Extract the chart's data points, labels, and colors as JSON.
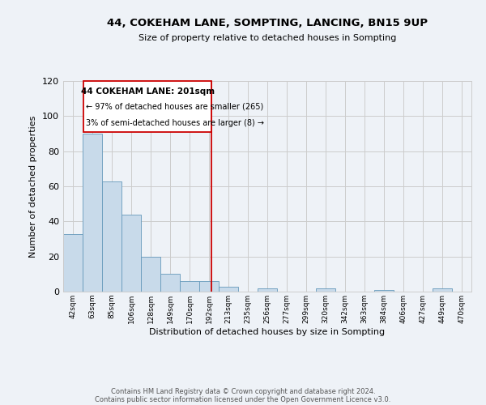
{
  "title": "44, COKEHAM LANE, SOMPTING, LANCING, BN15 9UP",
  "subtitle": "Size of property relative to detached houses in Sompting",
  "xlabel": "Distribution of detached houses by size in Sompting",
  "ylabel": "Number of detached properties",
  "bin_labels": [
    "42sqm",
    "63sqm",
    "85sqm",
    "106sqm",
    "128sqm",
    "149sqm",
    "170sqm",
    "192sqm",
    "213sqm",
    "235sqm",
    "256sqm",
    "277sqm",
    "299sqm",
    "320sqm",
    "342sqm",
    "363sqm",
    "384sqm",
    "406sqm",
    "427sqm",
    "449sqm",
    "470sqm"
  ],
  "bar_heights": [
    33,
    90,
    63,
    44,
    20,
    10,
    6,
    6,
    3,
    0,
    2,
    0,
    0,
    2,
    0,
    0,
    1,
    0,
    0,
    2,
    0
  ],
  "bar_color": "#c8daea",
  "bar_edge_color": "#6699bb",
  "grid_color": "#cccccc",
  "background_color": "#eef2f7",
  "ylim": [
    0,
    120
  ],
  "yticks": [
    0,
    20,
    40,
    60,
    80,
    100,
    120
  ],
  "property_line_x": 7.62,
  "annotation_box_text_line1": "44 COKEHAM LANE: 201sqm",
  "annotation_box_text_line2": "← 97% of detached houses are smaller (265)",
  "annotation_box_text_line3": "3% of semi-detached houses are larger (8) →",
  "annotation_box_color": "#ffffff",
  "annotation_box_edge_color": "#cc0000",
  "property_line_color": "#cc0000",
  "footer_line1": "Contains HM Land Registry data © Crown copyright and database right 2024.",
  "footer_line2": "Contains public sector information licensed under the Open Government Licence v3.0."
}
